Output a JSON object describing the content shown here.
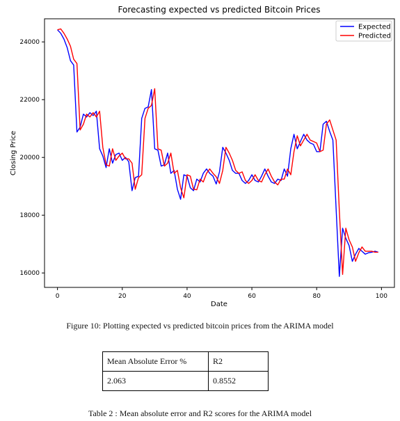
{
  "chart_data": {
    "type": "line",
    "title": "Forecasting expected vs predicted Bitcoin Prices",
    "xlabel": "Date",
    "ylabel": "Closing Price",
    "xlim": [
      -4,
      104
    ],
    "ylim": [
      15500,
      24800
    ],
    "xticks": [
      0,
      20,
      40,
      60,
      80,
      100
    ],
    "yticks": [
      16000,
      18000,
      20000,
      22000,
      24000
    ],
    "legend_position": "top-right",
    "grid": false,
    "x": [
      0,
      1,
      2,
      3,
      4,
      5,
      6,
      7,
      8,
      9,
      10,
      11,
      12,
      13,
      14,
      15,
      16,
      17,
      18,
      19,
      20,
      21,
      22,
      23,
      24,
      25,
      26,
      27,
      28,
      29,
      30,
      31,
      32,
      33,
      34,
      35,
      36,
      37,
      38,
      39,
      40,
      41,
      42,
      43,
      44,
      45,
      46,
      47,
      48,
      49,
      50,
      51,
      52,
      53,
      54,
      55,
      56,
      57,
      58,
      59,
      60,
      61,
      62,
      63,
      64,
      65,
      66,
      67,
      68,
      69,
      70,
      71,
      72,
      73,
      74,
      75,
      76,
      77,
      78,
      79,
      80,
      81,
      82,
      83,
      84,
      85,
      86,
      87,
      88,
      89,
      90,
      91,
      92,
      93,
      94,
      95,
      96,
      97,
      98,
      99
    ],
    "series": [
      {
        "name": "Expected",
        "color": "#0000ff",
        "values": [
          24420,
          24300,
          24100,
          23800,
          23350,
          23200,
          20880,
          21050,
          21500,
          21400,
          21550,
          21450,
          21600,
          20300,
          20050,
          19650,
          20300,
          19800,
          20100,
          20150,
          19900,
          20000,
          19850,
          18850,
          19300,
          19350,
          21350,
          21700,
          21750,
          22350,
          20300,
          20250,
          19700,
          19750,
          20150,
          19450,
          19550,
          18900,
          18550,
          19400,
          19350,
          18950,
          18850,
          19250,
          19150,
          19450,
          19600,
          19450,
          19350,
          19080,
          19500,
          20350,
          20150,
          19900,
          19550,
          19450,
          19450,
          19200,
          19100,
          19200,
          19400,
          19200,
          19150,
          19350,
          19600,
          19350,
          19150,
          19100,
          19250,
          19200,
          19600,
          19350,
          20300,
          20800,
          20300,
          20550,
          20800,
          20600,
          20500,
          20450,
          20200,
          20200,
          21150,
          21250,
          20900,
          20600,
          18200,
          15880,
          17550,
          17200,
          16950,
          16400,
          16650,
          16850,
          16750,
          16650,
          16700,
          16720,
          16750,
          16720
        ]
      },
      {
        "name": "Predicted",
        "color": "#ff0000",
        "values": [
          24420,
          24450,
          24300,
          24100,
          23850,
          23400,
          23250,
          20950,
          21150,
          21500,
          21400,
          21550,
          21400,
          21600,
          20350,
          19750,
          19700,
          20300,
          19900,
          20050,
          20150,
          19950,
          19950,
          19800,
          18900,
          19300,
          19400,
          21350,
          21700,
          21800,
          22380,
          20300,
          20250,
          19700,
          19800,
          20150,
          19450,
          19550,
          18950,
          18600,
          19400,
          19350,
          18900,
          18880,
          19250,
          19150,
          19450,
          19600,
          19450,
          19330,
          19100,
          19550,
          20350,
          20150,
          19900,
          19550,
          19450,
          19500,
          19200,
          19100,
          19200,
          19400,
          19200,
          19150,
          19400,
          19600,
          19350,
          19150,
          19050,
          19250,
          19250,
          19600,
          19400,
          20200,
          20750,
          20400,
          20600,
          20800,
          20600,
          20550,
          20500,
          20200,
          20250,
          21150,
          21300,
          20950,
          20600,
          18150,
          15950,
          17550,
          17150,
          16900,
          16400,
          16700,
          16900,
          16750,
          16750,
          16750,
          16720,
          16720
        ]
      }
    ]
  },
  "caption_figure": "Figure 10: Plotting expected vs predicted bitcoin prices from the ARIMA model",
  "metrics_table": {
    "headers": [
      "Mean Absolute Error %",
      "R2"
    ],
    "rows": [
      [
        "2.063",
        "0.8552"
      ]
    ]
  },
  "caption_table": "Table 2 : Mean absolute error and R2 scores for the ARIMA model"
}
